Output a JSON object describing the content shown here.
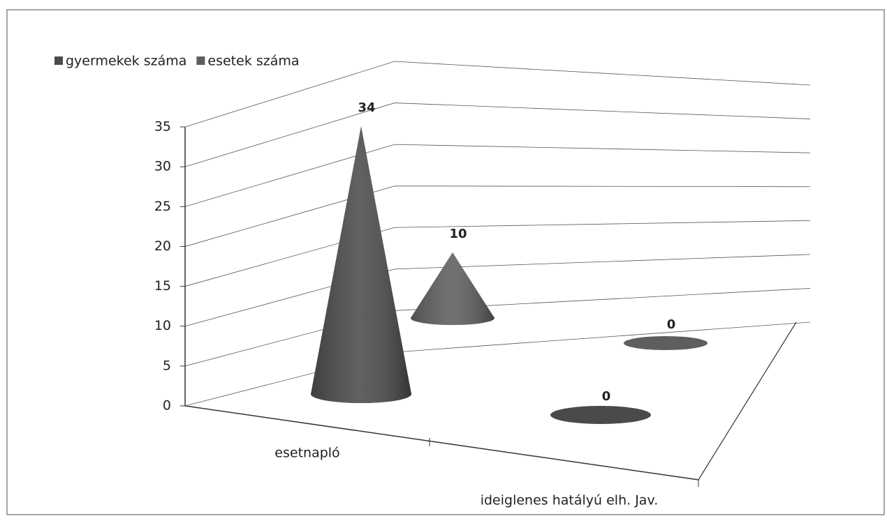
{
  "chart_data": {
    "type": "cone3d",
    "categories": [
      "esetnapló",
      "ideiglenes hatályú elh. Jav."
    ],
    "series": [
      {
        "name": "gyermekek száma",
        "color": "#4a4a4a",
        "values": [
          34,
          0
        ]
      },
      {
        "name": "esetek száma",
        "color": "#5e5e5e",
        "values": [
          10,
          0
        ]
      }
    ],
    "ylim": [
      0,
      35
    ],
    "yticks": [
      0,
      5,
      10,
      15,
      20,
      25,
      30,
      35
    ],
    "grid": true,
    "legend": "top-left"
  }
}
